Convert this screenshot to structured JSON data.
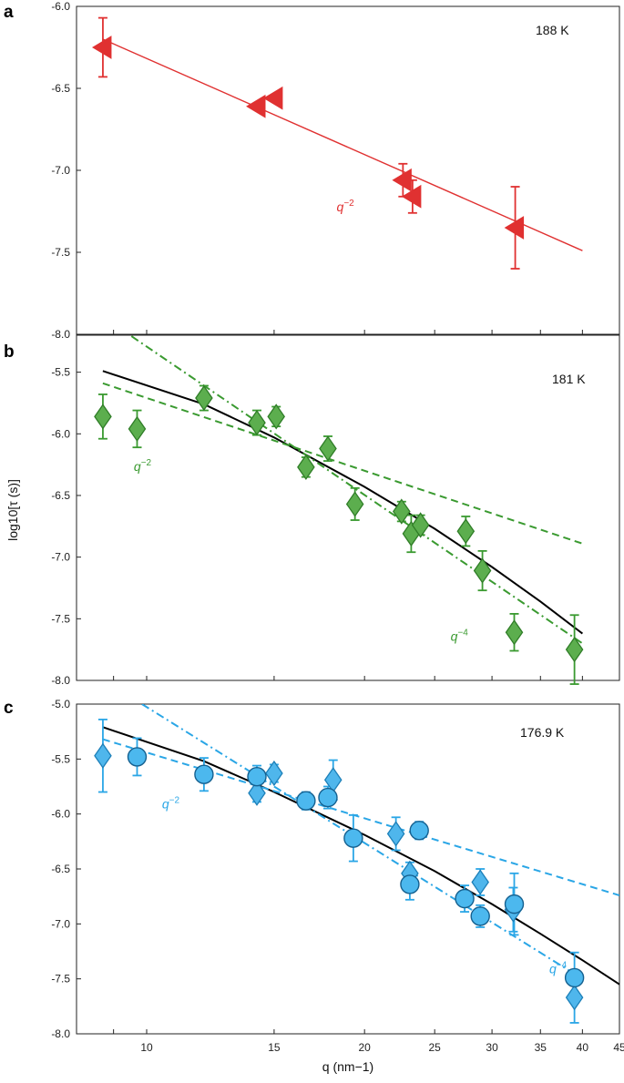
{
  "figure": {
    "ylabel": "log10[τ (s)]",
    "xlabel": "q (nm−1)",
    "colors": {
      "a": "#e03131",
      "b": "#3a9a30",
      "c": "#2aa6e6",
      "fit": "#000000"
    }
  },
  "chart_data": [
    {
      "panel": "a",
      "type": "scatter",
      "label": "188 K",
      "xscale": "log",
      "xlim": [
        8,
        45
      ],
      "ylim": [
        -8.0,
        -6.0
      ],
      "yticks": [
        -6.0,
        -6.5,
        -7.0,
        -7.5,
        -8.0
      ],
      "ytick_labels": [
        "-6.0",
        "-6.5",
        "-7.0",
        "-7.5",
        "-8.0"
      ],
      "series": [
        {
          "marker": "triangle-left",
          "points": [
            {
              "x": 8.7,
              "y": -6.25,
              "err": 0.18
            },
            {
              "x": 14.2,
              "y": -6.61,
              "err": 0
            },
            {
              "x": 15.0,
              "y": -6.56,
              "err": 0
            },
            {
              "x": 22.6,
              "y": -7.06,
              "err": 0.1
            },
            {
              "x": 23.3,
              "y": -7.16,
              "err": 0.1
            },
            {
              "x": 32.3,
              "y": -7.35,
              "err": 0.25
            }
          ]
        }
      ],
      "lines": [
        {
          "style": "solid",
          "x": [
            8.7,
            40
          ],
          "y": [
            -6.2,
            -7.49
          ]
        }
      ],
      "annotations": [
        {
          "text_base": "q",
          "text_exp": "−2",
          "x": 18.3,
          "y": -7.25
        }
      ]
    },
    {
      "panel": "b",
      "type": "scatter",
      "label": "181 K",
      "xscale": "log",
      "xlim": [
        8,
        45
      ],
      "ylim": [
        -8.0,
        -5.2
      ],
      "yticks": [
        -5.5,
        -6.0,
        -6.5,
        -7.0,
        -7.5,
        -8.0
      ],
      "ytick_labels": [
        "-5.5",
        "-6.0",
        "-6.5",
        "-7.0",
        "-7.5",
        "-8.0"
      ],
      "series": [
        {
          "marker": "diamond",
          "points": [
            {
              "x": 8.7,
              "y": -5.86,
              "err": 0.18
            },
            {
              "x": 9.7,
              "y": -5.96,
              "err": 0.15
            },
            {
              "x": 12.0,
              "y": -5.71,
              "err": 0.1
            },
            {
              "x": 14.2,
              "y": -5.91,
              "err": 0.1
            },
            {
              "x": 15.1,
              "y": -5.86,
              "err": 0.08
            },
            {
              "x": 16.6,
              "y": -6.27,
              "err": 0.08
            },
            {
              "x": 17.8,
              "y": -6.12,
              "err": 0.1
            },
            {
              "x": 19.4,
              "y": -6.57,
              "err": 0.13
            },
            {
              "x": 22.5,
              "y": -6.63,
              "err": 0.08
            },
            {
              "x": 23.2,
              "y": -6.81,
              "err": 0.15
            },
            {
              "x": 23.9,
              "y": -6.74,
              "err": 0.08
            },
            {
              "x": 27.6,
              "y": -6.79,
              "err": 0.12
            },
            {
              "x": 29.1,
              "y": -7.11,
              "err": 0.16
            },
            {
              "x": 32.2,
              "y": -7.61,
              "err": 0.15
            },
            {
              "x": 39.0,
              "y": -7.75,
              "err": 0.28
            }
          ]
        }
      ],
      "lines": [
        {
          "style": "solid",
          "x": [
            8.7,
            12,
            15,
            20,
            25,
            30,
            35,
            40
          ],
          "y": [
            -5.49,
            -5.76,
            -6.03,
            -6.43,
            -6.77,
            -7.08,
            -7.36,
            -7.62
          ]
        },
        {
          "style": "dashed",
          "x": [
            8.7,
            40
          ],
          "y": [
            -5.59,
            -6.89
          ]
        },
        {
          "style": "dashdot",
          "x": [
            8.7,
            40
          ],
          "y": [
            -5.05,
            -7.7
          ]
        }
      ],
      "annotations": [
        {
          "text_base": "q",
          "text_exp": "−2",
          "x": 9.6,
          "y": -6.3
        },
        {
          "text_base": "q",
          "text_exp": "−4",
          "x": 26.3,
          "y": -7.68
        }
      ]
    },
    {
      "panel": "c",
      "type": "scatter",
      "label": "176.9 K",
      "xscale": "log",
      "xlim": [
        8,
        45
      ],
      "ylim": [
        -8.0,
        -5.0
      ],
      "yticks": [
        -5.0,
        -5.5,
        -6.0,
        -6.5,
        -7.0,
        -7.5,
        -8.0
      ],
      "ytick_labels": [
        "-5.0",
        "-5.5",
        "-6.0",
        "-6.5",
        "-7.0",
        "-7.5",
        "-8.0"
      ],
      "xticks": [
        10,
        15,
        20,
        25,
        30,
        35,
        40,
        45
      ],
      "xtick_labels": [
        "10",
        "15",
        "20",
        "25",
        "30",
        "35",
        "40",
        "45"
      ],
      "series": [
        {
          "marker": "diamond",
          "points": [
            {
              "x": 8.7,
              "y": -5.47,
              "err": 0.33
            },
            {
              "x": 14.2,
              "y": -5.81,
              "err": 0.08
            },
            {
              "x": 15.0,
              "y": -5.63,
              "err": 0.08
            },
            {
              "x": 18.1,
              "y": -5.69,
              "err": 0.18
            },
            {
              "x": 22.1,
              "y": -6.18,
              "err": 0.15
            },
            {
              "x": 23.1,
              "y": -6.54,
              "err": 0.1
            },
            {
              "x": 28.9,
              "y": -6.62,
              "err": 0.12
            },
            {
              "x": 32.1,
              "y": -6.87,
              "err": 0.2
            },
            {
              "x": 39.0,
              "y": -7.67,
              "err": 0.23
            }
          ]
        },
        {
          "marker": "circle",
          "points": [
            {
              "x": 9.7,
              "y": -5.48,
              "err": 0.17
            },
            {
              "x": 12.0,
              "y": -5.64,
              "err": 0.15
            },
            {
              "x": 14.2,
              "y": -5.66,
              "err": 0.1
            },
            {
              "x": 16.6,
              "y": -5.88,
              "err": 0.08
            },
            {
              "x": 17.8,
              "y": -5.85,
              "err": 0.1
            },
            {
              "x": 19.3,
              "y": -6.22,
              "err": 0.21
            },
            {
              "x": 23.1,
              "y": -6.64,
              "err": 0.14
            },
            {
              "x": 23.8,
              "y": -6.15,
              "err": 0.08
            },
            {
              "x": 27.5,
              "y": -6.77,
              "err": 0.12
            },
            {
              "x": 28.9,
              "y": -6.93,
              "err": 0.1
            },
            {
              "x": 32.2,
              "y": -6.82,
              "err": 0.28
            },
            {
              "x": 39.0,
              "y": -7.49,
              "err": 0.23
            }
          ]
        }
      ],
      "lines": [
        {
          "style": "solid",
          "x": [
            8.7,
            12,
            15,
            20,
            25,
            30,
            35,
            40,
            45
          ],
          "y": [
            -5.21,
            -5.52,
            -5.8,
            -6.19,
            -6.52,
            -6.82,
            -7.09,
            -7.33,
            -7.55
          ]
        },
        {
          "style": "dashed",
          "x": [
            8.7,
            45
          ],
          "y": [
            -5.32,
            -6.74
          ]
        },
        {
          "style": "dashdot",
          "x": [
            9.85,
            40
          ],
          "y": [
            -5.0,
            -7.5
          ]
        }
      ],
      "annotations": [
        {
          "text_base": "q",
          "text_exp": "−2",
          "x": 10.5,
          "y": -5.95
        },
        {
          "text_base": "q",
          "text_exp": "−4",
          "x": 36.0,
          "y": -7.45
        }
      ]
    }
  ]
}
